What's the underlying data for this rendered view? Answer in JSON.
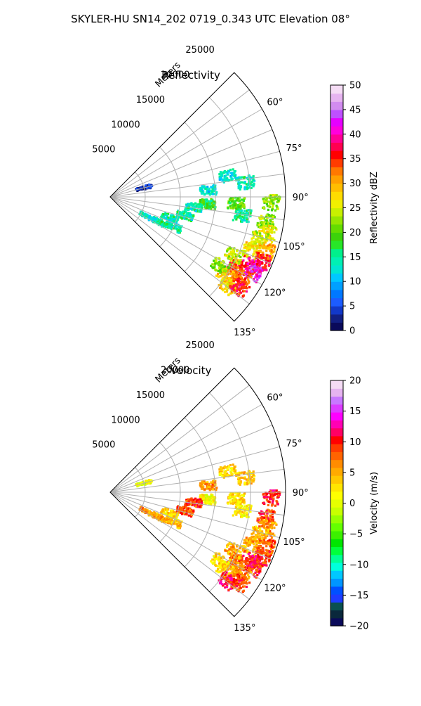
{
  "figure": {
    "title": "SKYLER-HU  SN14_202  0719_0.343 UTC Elevation 08°"
  },
  "chart_data": [
    {
      "type": "heatmap",
      "title": "Reflectivity",
      "range_label": "Meters",
      "range_ticks": [
        5000,
        10000,
        15000,
        20000,
        25000
      ],
      "range_tick_labels": [
        "5000",
        "10000",
        "15000",
        "20000",
        "25000"
      ],
      "azimuth_ticks": [
        60,
        75,
        90,
        105,
        120,
        135
      ],
      "azimuth_tick_labels": [
        "60°",
        "75°",
        "90°",
        "105°",
        "120°",
        "135°"
      ],
      "azimuth_range": [
        45,
        135
      ],
      "range_max": 25000,
      "grid": true,
      "colorbar": {
        "label": "Reflectivity dBZ",
        "range": [
          0,
          50
        ],
        "ticks": [
          0,
          5,
          10,
          15,
          20,
          25,
          30,
          35,
          40,
          45,
          50
        ],
        "tick_labels": [
          "0",
          "5",
          "10",
          "15",
          "20",
          "25",
          "30",
          "35",
          "40",
          "45",
          "50"
        ],
        "colors": [
          "#0a0a5a",
          "#121f82",
          "#1238c8",
          "#1c5cff",
          "#0078ff",
          "#00a0ff",
          "#00c8ff",
          "#00e6d2",
          "#00f0b4",
          "#00f08c",
          "#28e628",
          "#3cd20a",
          "#64dc00",
          "#96e600",
          "#c8f000",
          "#f0f000",
          "#ffdc00",
          "#ffbe00",
          "#ffa000",
          "#ff7800",
          "#ff3c00",
          "#ff0000",
          "#ff0050",
          "#ff0096",
          "#ff00dc",
          "#e600ff",
          "#be50ff",
          "#d28cf0",
          "#e6b4f0",
          "#f5dcf5"
        ]
      },
      "echo_cells": [
        {
          "az": 98,
          "r": 19000,
          "v": 15
        },
        {
          "az": 80,
          "r": 17000,
          "v": 13
        },
        {
          "az": 84,
          "r": 19500,
          "v": 14
        },
        {
          "az": 86,
          "r": 14000,
          "v": 13
        },
        {
          "az": 94,
          "r": 14000,
          "v": 18
        },
        {
          "az": 93,
          "r": 18000,
          "v": 20
        },
        {
          "az": 97,
          "r": 12000,
          "v": 14
        },
        {
          "az": 92,
          "r": 23000,
          "v": 22
        },
        {
          "az": 99,
          "r": 22500,
          "v": 22
        },
        {
          "az": 103,
          "r": 23000,
          "v": 26
        },
        {
          "az": 106,
          "r": 22000,
          "v": 24
        },
        {
          "az": 109,
          "r": 23500,
          "v": 30
        },
        {
          "az": 111,
          "r": 21500,
          "v": 27
        },
        {
          "az": 113,
          "r": 23500,
          "v": 36
        },
        {
          "az": 116,
          "r": 22000,
          "v": 38
        },
        {
          "az": 119,
          "r": 20500,
          "v": 35
        },
        {
          "az": 118,
          "r": 23000,
          "v": 42
        },
        {
          "az": 121,
          "r": 22000,
          "v": 33
        },
        {
          "az": 124,
          "r": 20000,
          "v": 30
        },
        {
          "az": 127,
          "r": 21000,
          "v": 27
        },
        {
          "az": 125,
          "r": 22500,
          "v": 36
        },
        {
          "az": 122,
          "r": 18500,
          "v": 22
        },
        {
          "az": 115,
          "r": 19500,
          "v": 24
        },
        {
          "az": 117,
          "r": 8000,
          "v": 15
        },
        {
          "az": 115,
          "r": 10000,
          "v": 14
        },
        {
          "az": 118,
          "r": 6000,
          "v": 13
        },
        {
          "az": 109,
          "r": 9000,
          "v": 14
        },
        {
          "az": 104,
          "r": 11000,
          "v": 14
        },
        {
          "az": 75,
          "r": 5000,
          "v": 3
        }
      ]
    },
    {
      "type": "heatmap",
      "title": "Velocity",
      "range_label": "Meters",
      "range_ticks": [
        5000,
        10000,
        15000,
        20000,
        25000
      ],
      "range_tick_labels": [
        "5000",
        "10000",
        "15000",
        "20000",
        "25000"
      ],
      "azimuth_ticks": [
        60,
        75,
        90,
        105,
        120,
        135
      ],
      "azimuth_tick_labels": [
        "60°",
        "75°",
        "90°",
        "105°",
        "120°",
        "135°"
      ],
      "azimuth_range": [
        45,
        135
      ],
      "range_max": 25000,
      "grid": true,
      "colorbar": {
        "label": "Velocity (m/s)",
        "range": [
          -20,
          20
        ],
        "ticks": [
          -20,
          -15,
          -10,
          -5,
          0,
          5,
          10,
          15,
          20
        ],
        "tick_labels": [
          "−20",
          "−15",
          "−10",
          "−5",
          "0",
          "5",
          "10",
          "15",
          "20"
        ],
        "colors": [
          "#0a0a5a",
          "#0a283c",
          "#0a5050",
          "#1e3cff",
          "#0050ff",
          "#0096ff",
          "#00c8ff",
          "#00ffdc",
          "#00ff96",
          "#00ff3c",
          "#00e600",
          "#3cf000",
          "#64ff00",
          "#96ff00",
          "#c8ff00",
          "#e6ff00",
          "#ffff00",
          "#ffe600",
          "#ffc800",
          "#ffaa00",
          "#ff8c00",
          "#ff6400",
          "#ff3c00",
          "#ff0000",
          "#ff0064",
          "#ff00b4",
          "#ff00ff",
          "#dc3cff",
          "#c878ff",
          "#e6b4f0",
          "#f5dcf5"
        ]
      },
      "echo_cells": [
        {
          "az": 98,
          "r": 19000,
          "v": 2
        },
        {
          "az": 80,
          "r": 17000,
          "v": 3
        },
        {
          "az": 84,
          "r": 19500,
          "v": 4
        },
        {
          "az": 86,
          "r": 14000,
          "v": 6
        },
        {
          "az": 94,
          "r": 14000,
          "v": 1
        },
        {
          "az": 93,
          "r": 18000,
          "v": 3
        },
        {
          "az": 97,
          "r": 12000,
          "v": 9
        },
        {
          "az": 92,
          "r": 23000,
          "v": 10
        },
        {
          "az": 99,
          "r": 22500,
          "v": 9
        },
        {
          "az": 103,
          "r": 23000,
          "v": 6
        },
        {
          "az": 106,
          "r": 22000,
          "v": 4
        },
        {
          "az": 109,
          "r": 23500,
          "v": 8
        },
        {
          "az": 111,
          "r": 21500,
          "v": 5
        },
        {
          "az": 113,
          "r": 23500,
          "v": 9
        },
        {
          "az": 116,
          "r": 22000,
          "v": 11
        },
        {
          "az": 119,
          "r": 20500,
          "v": 8
        },
        {
          "az": 118,
          "r": 23000,
          "v": 10
        },
        {
          "az": 121,
          "r": 22000,
          "v": 6
        },
        {
          "az": 124,
          "r": 20000,
          "v": 4
        },
        {
          "az": 127,
          "r": 21000,
          "v": 11
        },
        {
          "az": 125,
          "r": 22500,
          "v": 9
        },
        {
          "az": 122,
          "r": 18500,
          "v": 3
        },
        {
          "az": 115,
          "r": 19500,
          "v": 5
        },
        {
          "az": 117,
          "r": 8000,
          "v": 5
        },
        {
          "az": 115,
          "r": 10000,
          "v": 4
        },
        {
          "az": 118,
          "r": 6000,
          "v": 6
        },
        {
          "az": 109,
          "r": 9000,
          "v": 3
        },
        {
          "az": 104,
          "r": 11000,
          "v": 8
        },
        {
          "az": 75,
          "r": 5000,
          "v": 0
        }
      ]
    }
  ]
}
